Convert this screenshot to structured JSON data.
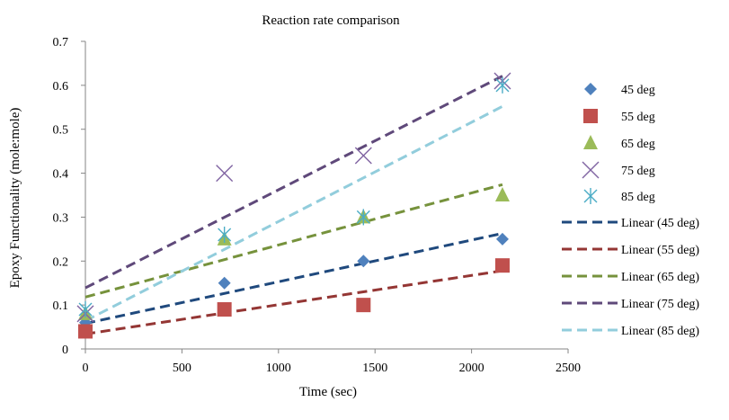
{
  "chart_data": {
    "type": "scatter",
    "title": "Reaction rate  comparison",
    "xlabel": "Time (sec)",
    "ylabel": "Epoxy Functionality (mole:mole)",
    "xlim": [
      0,
      2500
    ],
    "ylim": [
      0,
      0.7
    ],
    "xticks": [
      0,
      500,
      1000,
      1500,
      2000,
      2500
    ],
    "yticks": [
      0,
      0.1,
      0.2,
      0.3,
      0.4,
      0.5,
      0.6,
      0.7
    ],
    "xtick_labels": [
      "0",
      "500",
      "1000",
      "1500",
      "2000",
      "2500"
    ],
    "ytick_labels": [
      "0",
      "0.1",
      "0.2",
      "0.3",
      "0.4",
      "0.5",
      "0.6",
      "0.7"
    ],
    "grid": false,
    "legend_position": "right",
    "series": [
      {
        "name": "45 deg",
        "marker": "diamond",
        "color": "#4F81BD",
        "x": [
          0,
          720,
          1440,
          2160
        ],
        "y": [
          0.06,
          0.15,
          0.2,
          0.25
        ]
      },
      {
        "name": "55 deg",
        "marker": "square",
        "color": "#C0504D",
        "x": [
          0,
          720,
          1440,
          2160
        ],
        "y": [
          0.04,
          0.09,
          0.1,
          0.19
        ]
      },
      {
        "name": "65 deg",
        "marker": "triangle",
        "color": "#9BBB59",
        "x": [
          0,
          720,
          1440,
          2160
        ],
        "y": [
          0.08,
          0.25,
          0.3,
          0.35
        ]
      },
      {
        "name": "75 deg",
        "marker": "x",
        "color": "#8064A2",
        "x": [
          0,
          720,
          1440,
          2160
        ],
        "y": [
          0.08,
          0.4,
          0.44,
          0.61
        ]
      },
      {
        "name": "85 deg",
        "marker": "star",
        "color": "#4BACC6",
        "x": [
          0,
          720,
          1440,
          2160
        ],
        "y": [
          0.09,
          0.26,
          0.3,
          0.6
        ]
      }
    ],
    "trendlines": [
      {
        "name": "Linear (45 deg)",
        "color": "#1F497D",
        "x": [
          0,
          2160
        ],
        "y": [
          0.058,
          0.263
        ]
      },
      {
        "name": "Linear (55 deg)",
        "color": "#943634",
        "x": [
          0,
          2160
        ],
        "y": [
          0.034,
          0.178
        ]
      },
      {
        "name": "Linear (65 deg)",
        "color": "#76923C",
        "x": [
          0,
          2160
        ],
        "y": [
          0.118,
          0.374
        ]
      },
      {
        "name": "Linear (75 deg)",
        "color": "#5F497A",
        "x": [
          0,
          2160
        ],
        "y": [
          0.139,
          0.621
        ]
      },
      {
        "name": "Linear (85 deg)",
        "color": "#92CDDC",
        "x": [
          0,
          2160
        ],
        "y": [
          0.064,
          0.552
        ]
      }
    ]
  }
}
